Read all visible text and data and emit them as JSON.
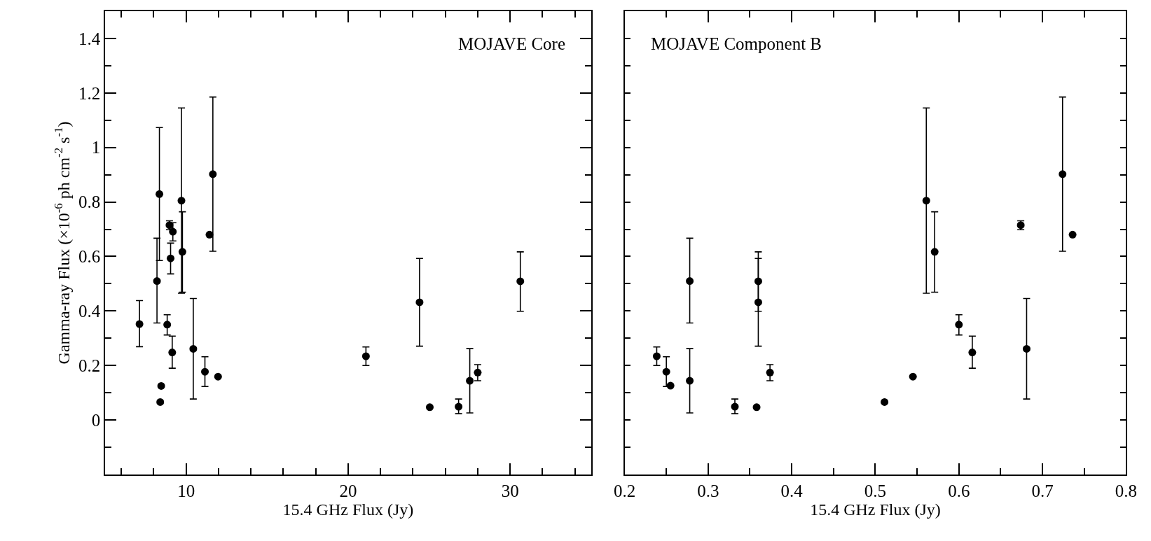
{
  "chart_data": [
    {
      "type": "scatter",
      "xlabel": "15.4 GHz Flux (Jy)",
      "ylabel": "Gamma-ray Flux (×10$^{-6}$ ph cm$^{-2}$ s$^{-1}$)",
      "annotations": [
        "MOJAVE Core"
      ],
      "marker": "circle",
      "xlim": [
        5,
        35
      ],
      "ylim": [
        -0.2,
        1.5
      ],
      "xticks": [
        {
          "value": 6,
          "label": null
        },
        {
          "value": 8,
          "label": null
        },
        {
          "value": 10,
          "label": "10"
        },
        {
          "value": 12,
          "label": null
        },
        {
          "value": 14,
          "label": null
        },
        {
          "value": 16,
          "label": null
        },
        {
          "value": 18,
          "label": null
        },
        {
          "value": 20,
          "label": "20"
        },
        {
          "value": 22,
          "label": null
        },
        {
          "value": 24,
          "label": null
        },
        {
          "value": 26,
          "label": null
        },
        {
          "value": 28,
          "label": null
        },
        {
          "value": 30,
          "label": "30"
        },
        {
          "value": 32,
          "label": null
        },
        {
          "value": 34,
          "label": null
        }
      ],
      "yticks": [
        {
          "value": -0.1,
          "label": null
        },
        0,
        {
          "value": 0.1,
          "label": null
        },
        0.2,
        {
          "value": 0.3,
          "label": null
        },
        0.4,
        {
          "value": 0.5,
          "label": null
        },
        0.6,
        {
          "value": 0.7,
          "label": null
        },
        0.8,
        {
          "value": 0.9,
          "label": null
        },
        1,
        {
          "value": 1.1,
          "label": null
        },
        1.2,
        {
          "value": 1.3,
          "label": null
        },
        1.4
      ],
      "series": [
        {
          "color": "#000000",
          "x": [
            7.12,
            8.35,
            8.2,
            8.97,
            9.18,
            9.04,
            9.71,
            9.77,
            11.65,
            11.44,
            8.83,
            9.14,
            10.44,
            11.16,
            11.97,
            8.46,
            8.4,
            24.41,
            30.63,
            25.04,
            26.82,
            27.51,
            28.0,
            21.1
          ],
          "values": [
            0.352,
            0.829,
            0.51,
            0.715,
            0.691,
            0.593,
            0.805,
            0.617,
            0.902,
            0.68,
            0.35,
            0.248,
            0.261,
            0.177,
            0.159,
            0.125,
            0.066,
            0.432,
            0.509,
            0.047,
            0.049,
            0.144,
            0.174,
            0.234
          ],
          "errors": [
            [
              0.269,
              0.438
            ],
            [
              0.585,
              1.073
            ],
            [
              0.356,
              0.667
            ],
            [
              0.698,
              0.731
            ],
            [
              0.657,
              0.724
            ],
            [
              0.536,
              0.649
            ],
            [
              0.465,
              1.145
            ],
            [
              0.469,
              0.764
            ],
            [
              0.619,
              1.185
            ],
            null,
            [
              0.312,
              0.386
            ],
            [
              0.19,
              0.308
            ],
            [
              0.077,
              0.446
            ],
            [
              0.123,
              0.232
            ],
            null,
            null,
            null,
            [
              0.271,
              0.593
            ],
            [
              0.399,
              0.617
            ],
            null,
            [
              0.023,
              0.077
            ],
            [
              0.026,
              0.262
            ],
            [
              0.144,
              0.203
            ],
            [
              0.2,
              0.268
            ]
          ]
        }
      ]
    },
    {
      "type": "scatter",
      "xlabel": "15.4 GHz Flux (Jy)",
      "annotations": [
        "MOJAVE Component B"
      ],
      "marker": "circle",
      "tick_labels": "x",
      "xlim": [
        0.2,
        0.8
      ],
      "ylim": [
        -0.2,
        1.5
      ],
      "xticks": [
        0.2,
        {
          "value": 0.25,
          "label": null
        },
        0.3,
        {
          "value": 0.35,
          "label": null
        },
        0.4,
        {
          "value": 0.45,
          "label": null
        },
        0.5,
        {
          "value": 0.55,
          "label": null
        },
        0.6,
        {
          "value": 0.65,
          "label": null
        },
        0.7,
        {
          "value": 0.75,
          "label": null
        },
        0.8
      ],
      "yticks": [
        {
          "value": -0.1,
          "label": null
        },
        {
          "value": 0,
          "label": null
        },
        {
          "value": 0.1,
          "label": null
        },
        {
          "value": 0.2,
          "label": null
        },
        {
          "value": 0.3,
          "label": null
        },
        {
          "value": 0.4,
          "label": null
        },
        {
          "value": 0.5,
          "label": null
        },
        {
          "value": 0.6,
          "label": null
        },
        {
          "value": 0.7,
          "label": null
        },
        {
          "value": 0.8,
          "label": null
        },
        {
          "value": 0.9,
          "label": null
        },
        {
          "value": 1,
          "label": null
        },
        {
          "value": 1.1,
          "label": null
        },
        {
          "value": 1.2,
          "label": null
        },
        {
          "value": 1.3,
          "label": null
        },
        {
          "value": 1.4,
          "label": null
        }
      ],
      "series": [
        {
          "color": "#000000",
          "x": [
            0.2385,
            0.25,
            0.255,
            0.278,
            0.278,
            0.332,
            0.358,
            0.36,
            0.36,
            0.374,
            0.511,
            0.545,
            0.561,
            0.571,
            0.6,
            0.616,
            0.674,
            0.681,
            0.724,
            0.736
          ],
          "values": [
            0.234,
            0.177,
            0.126,
            0.51,
            0.144,
            0.049,
            0.047,
            0.509,
            0.432,
            0.174,
            0.066,
            0.159,
            0.805,
            0.617,
            0.35,
            0.248,
            0.715,
            0.261,
            0.902,
            0.68
          ],
          "errors": [
            [
              0.2,
              0.268
            ],
            [
              0.123,
              0.232
            ],
            null,
            [
              0.356,
              0.667
            ],
            [
              0.026,
              0.262
            ],
            [
              0.023,
              0.077
            ],
            null,
            [
              0.399,
              0.617
            ],
            [
              0.271,
              0.593
            ],
            [
              0.144,
              0.203
            ],
            null,
            null,
            [
              0.465,
              1.145
            ],
            [
              0.469,
              0.764
            ],
            [
              0.312,
              0.386
            ],
            [
              0.19,
              0.308
            ],
            [
              0.698,
              0.731
            ],
            [
              0.077,
              0.446
            ],
            [
              0.619,
              1.185
            ],
            null
          ]
        }
      ]
    }
  ]
}
